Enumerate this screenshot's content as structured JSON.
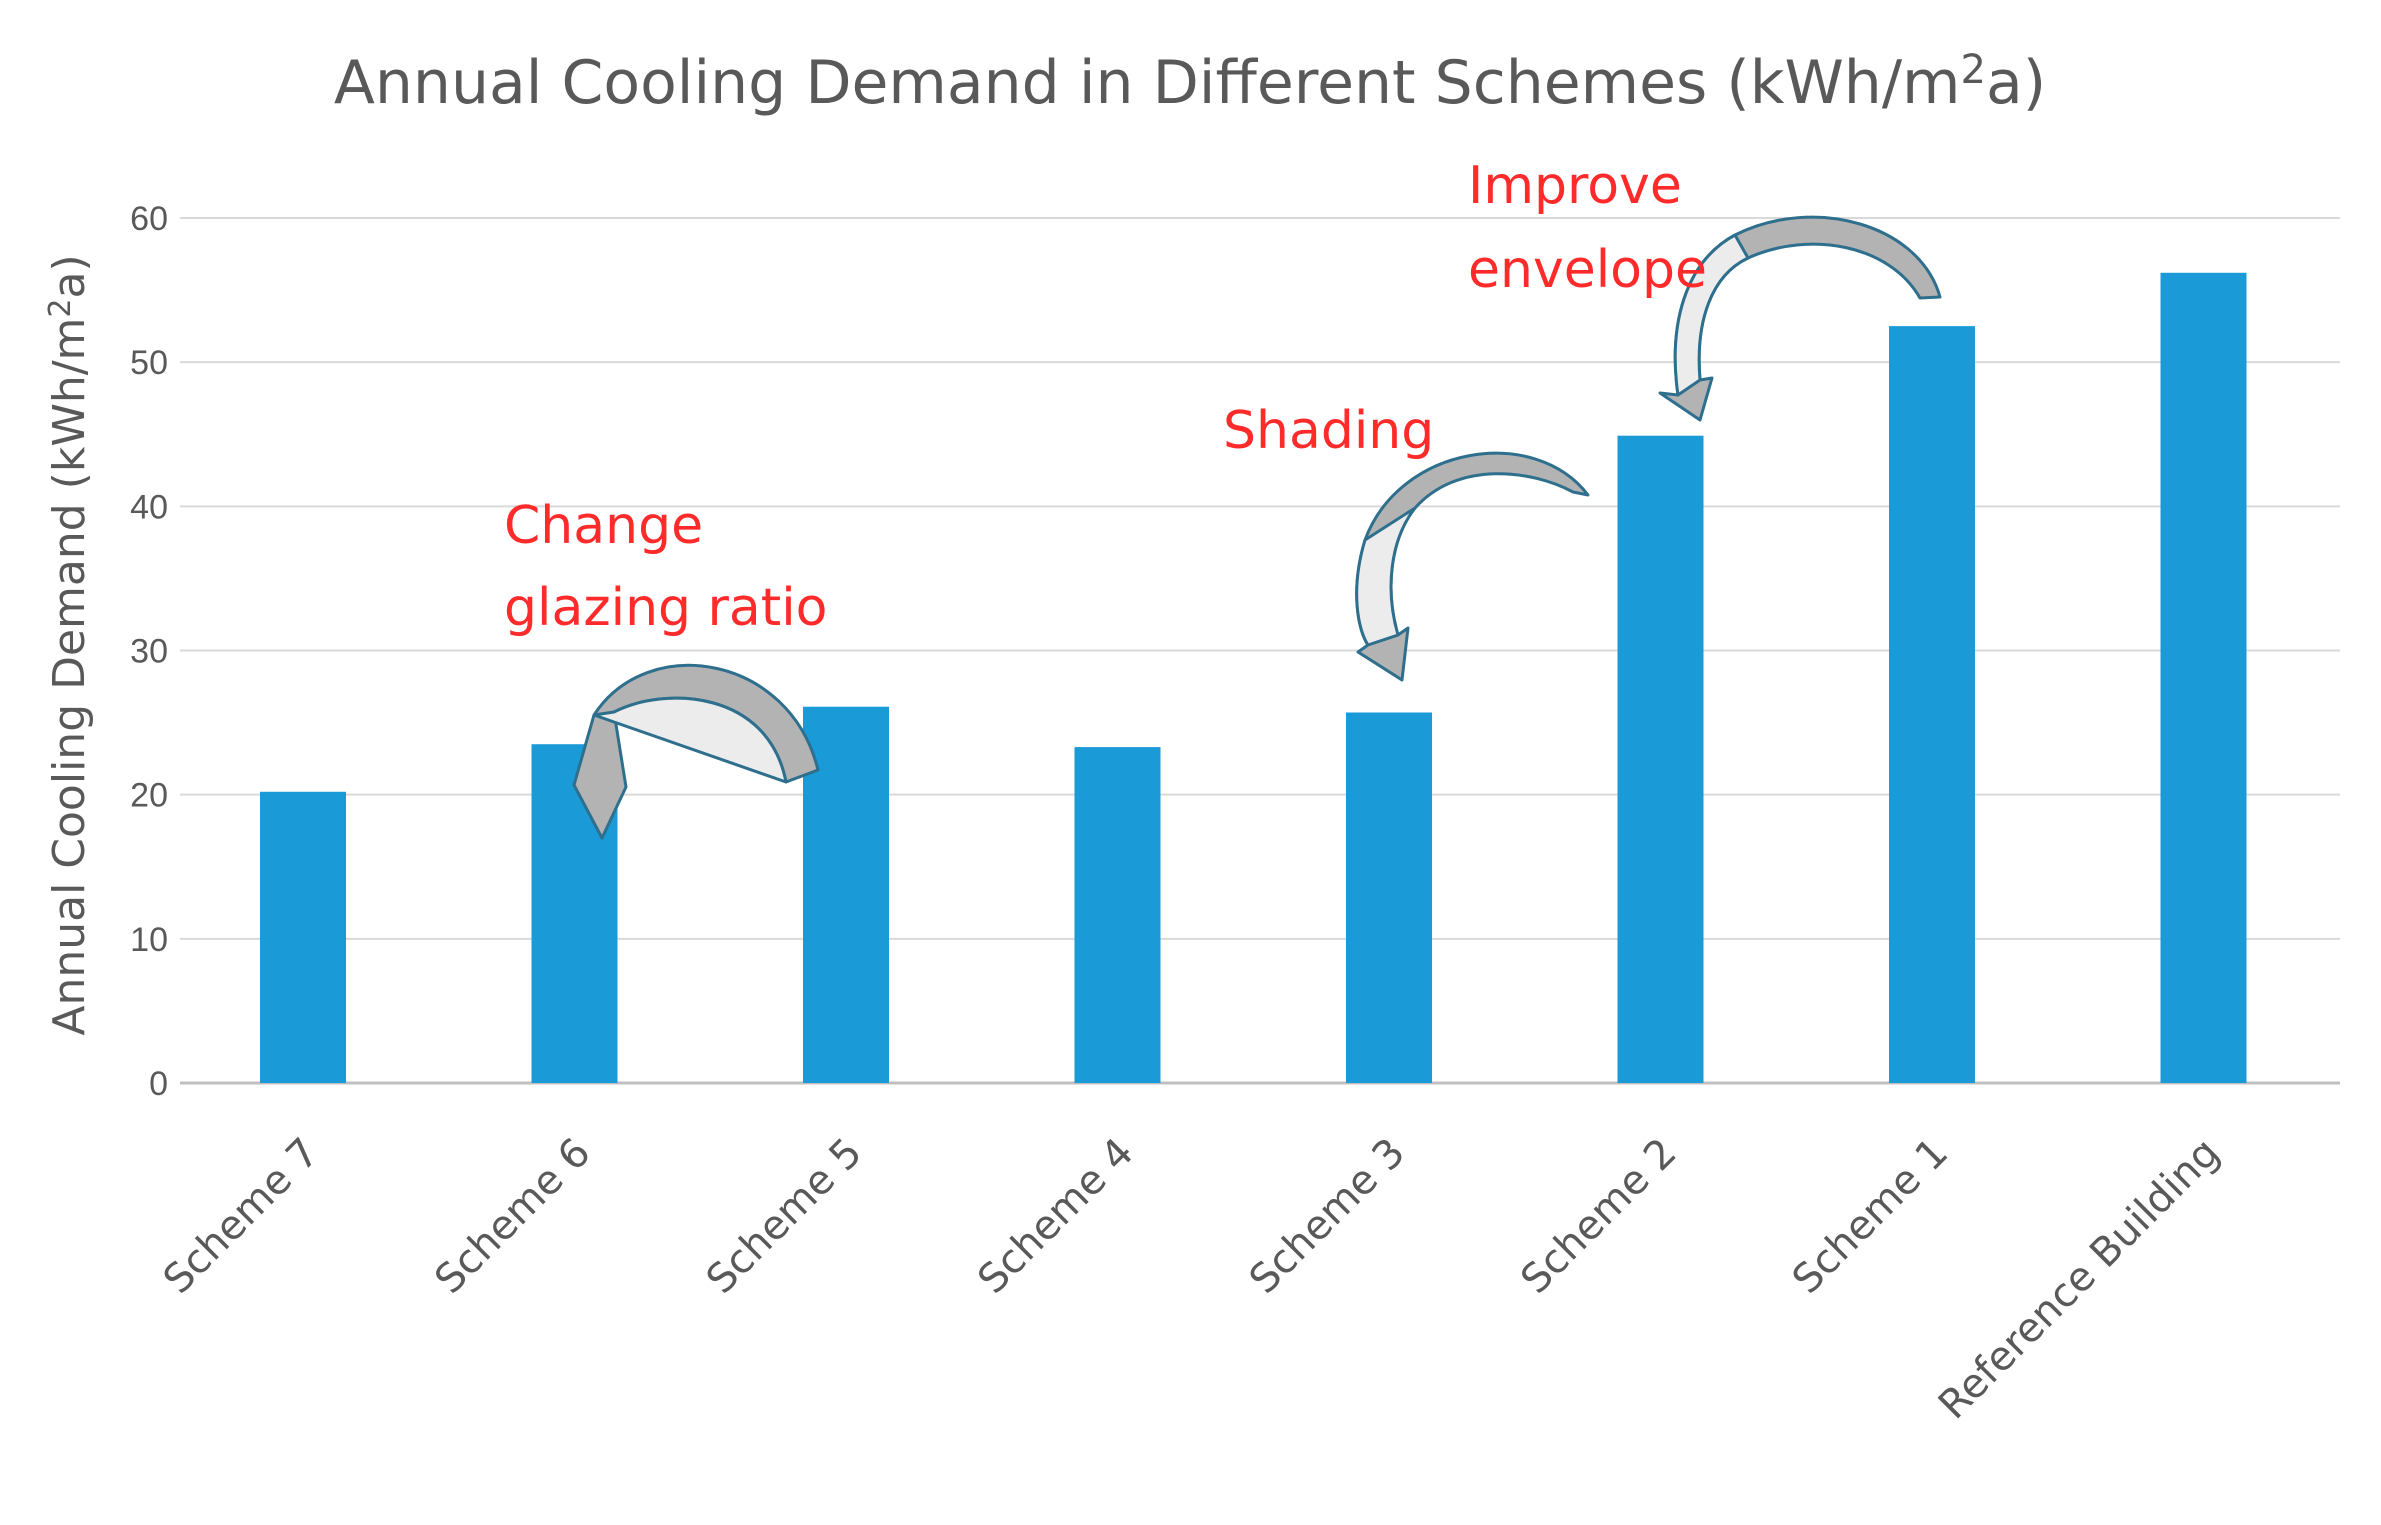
{
  "chart_data": {
    "type": "bar",
    "title": "Annual Cooling Demand in Different Schemes (kWh/m",
    "title_sup": "2",
    "title_end": "a)",
    "xlabel": "",
    "ylabel": "Annual Cooling Demand (kWh/m",
    "ylabel_sup": "2",
    "ylabel_end": "a)",
    "categories": [
      "Scheme 7",
      "Scheme 6",
      "Scheme 5",
      "Scheme 4",
      "Scheme 3",
      "Scheme 2",
      "Scheme 1",
      "Reference Building"
    ],
    "values": [
      20.2,
      23.5,
      26.1,
      23.3,
      25.7,
      44.9,
      52.5,
      56.2
    ],
    "ylim": [
      0,
      60
    ],
    "yticks": [
      0,
      10,
      20,
      30,
      40,
      50,
      60
    ],
    "grid": true,
    "legend": "none",
    "bar_color": "#1a9bd7",
    "annotations": [
      {
        "lines": [
          "Change",
          "glazing ratio"
        ],
        "color": "#ff2a2a",
        "from": "Scheme 5",
        "to": "Scheme 6"
      },
      {
        "lines": [
          "Shading"
        ],
        "color": "#ff2a2a",
        "from": "Scheme 2",
        "to": "Scheme 3"
      },
      {
        "lines": [
          "Improve",
          "envelope"
        ],
        "color": "#ff2a2a",
        "from": "Scheme 1",
        "to": "Scheme 2"
      }
    ]
  }
}
